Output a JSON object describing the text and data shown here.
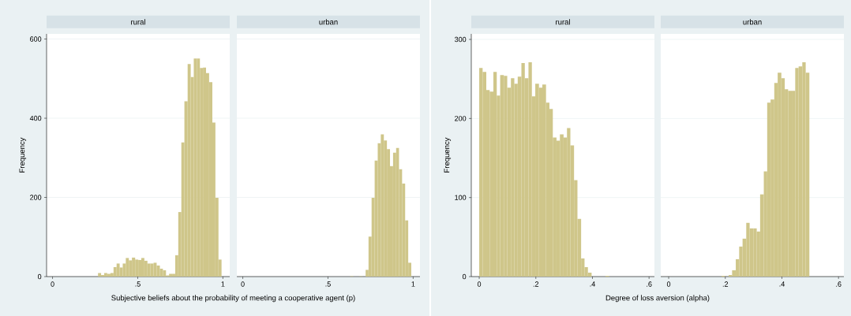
{
  "chart_data": [
    {
      "type": "histogram",
      "title": "rural",
      "ylabel": "Frequency",
      "xlabel": "Subjective beliefs about the probability of meeting a cooperative agent (p)",
      "color": "#cfc68a",
      "grid": "y",
      "xlim": [
        -0.035,
        1.04
      ],
      "ylim": [
        0,
        613
      ],
      "xticks": [
        0,
        {
          "value": 0.5,
          "label": ".5"
        },
        1
      ],
      "yticks": [
        0,
        200,
        400,
        600
      ],
      "bins": [
        0.267,
        0.285,
        0.303,
        0.321,
        0.34,
        0.358,
        0.376,
        0.394,
        0.412,
        0.43,
        0.448,
        0.466,
        0.485,
        0.503,
        0.521,
        0.539,
        0.557,
        0.575,
        0.593,
        0.611,
        0.63,
        0.648,
        0.666,
        0.684,
        0.702,
        0.72,
        0.738,
        0.756,
        0.774,
        0.793,
        0.811,
        0.829,
        0.847,
        0.865,
        0.883,
        0.901,
        0.919,
        0.938,
        0.956,
        0.974,
        0.992
      ],
      "values": [
        9,
        4,
        9,
        7,
        9,
        24,
        33,
        23,
        33,
        47,
        41,
        48,
        43,
        42,
        47,
        40,
        33,
        33,
        35,
        28,
        20,
        16,
        3,
        7,
        7,
        54,
        163,
        339,
        443,
        537,
        504,
        551,
        551,
        527,
        528,
        514,
        491,
        389,
        199,
        43
      ]
    },
    {
      "type": "histogram",
      "title": "urban",
      "color": "#cfc68a",
      "grid": "y",
      "tick_labels": "x",
      "xlim": [
        -0.035,
        1.04
      ],
      "ylim": [
        0,
        613
      ],
      "xticks": [
        0,
        {
          "value": 0.5,
          "label": ".5"
        },
        1
      ],
      "yticks": [
        0,
        200,
        400,
        600
      ],
      "bins": [
        0.631,
        0.649,
        0.667,
        0.685,
        0.703,
        0.721,
        0.738,
        0.756,
        0.774,
        0.792,
        0.81,
        0.828,
        0.846,
        0.864,
        0.882,
        0.9,
        0.917,
        0.935,
        0.953,
        0.971,
        0.989
      ],
      "values": [
        1,
        0,
        0,
        1,
        0,
        17,
        101,
        199,
        293,
        337,
        359,
        344,
        322,
        279,
        313,
        325,
        271,
        235,
        142,
        35
      ]
    },
    {
      "type": "histogram",
      "title": "rural",
      "ylabel": "Frequency",
      "xlabel": "Degree of loss aversion (alpha)",
      "color": "#cfc68a",
      "grid": "y",
      "xlim": [
        -0.028,
        0.619
      ],
      "ylim": [
        0,
        307
      ],
      "xticks": [
        0,
        {
          "value": 0.2,
          "label": ".2"
        },
        {
          "value": 0.4,
          "label": ".4"
        },
        {
          "value": 0.6,
          "label": ".6"
        }
      ],
      "yticks": [
        0,
        100,
        200,
        300
      ],
      "bins": [
        0,
        0.012,
        0.025,
        0.037,
        0.05,
        0.062,
        0.074,
        0.087,
        0.099,
        0.112,
        0.124,
        0.136,
        0.149,
        0.161,
        0.174,
        0.186,
        0.198,
        0.211,
        0.223,
        0.236,
        0.248,
        0.26,
        0.273,
        0.285,
        0.298,
        0.31,
        0.322,
        0.335,
        0.347,
        0.36,
        0.372,
        0.384,
        0.397,
        0.409,
        0.422,
        0.434,
        0.446,
        0.459
      ],
      "values": [
        264,
        259,
        236,
        234,
        259,
        229,
        255,
        254,
        239,
        251,
        244,
        253,
        270,
        251,
        271,
        228,
        244,
        239,
        243,
        220,
        212,
        176,
        172,
        180,
        176,
        188,
        166,
        122,
        73,
        23,
        12,
        5,
        0,
        0,
        0,
        0,
        1
      ]
    },
    {
      "type": "histogram",
      "title": "urban",
      "color": "#cfc68a",
      "grid": "y",
      "tick_labels": "x",
      "xlim": [
        -0.028,
        0.619
      ],
      "ylim": [
        0,
        307
      ],
      "xticks": [
        0,
        {
          "value": 0.2,
          "label": ".2"
        },
        {
          "value": 0.4,
          "label": ".4"
        },
        {
          "value": 0.6,
          "label": ".6"
        }
      ],
      "yticks": [
        0,
        100,
        200,
        300
      ],
      "bins": [
        0.187,
        0.199,
        0.212,
        0.224,
        0.237,
        0.249,
        0.261,
        0.274,
        0.286,
        0.299,
        0.311,
        0.323,
        0.336,
        0.348,
        0.36,
        0.373,
        0.385,
        0.398,
        0.41,
        0.422,
        0.435,
        0.447,
        0.459,
        0.472,
        0.484,
        0.497
      ],
      "values": [
        1,
        0,
        2,
        8,
        22,
        38,
        48,
        68,
        61,
        61,
        57,
        104,
        133,
        220,
        224,
        245,
        258,
        251,
        237,
        235,
        235,
        264,
        266,
        271,
        258
      ]
    }
  ]
}
